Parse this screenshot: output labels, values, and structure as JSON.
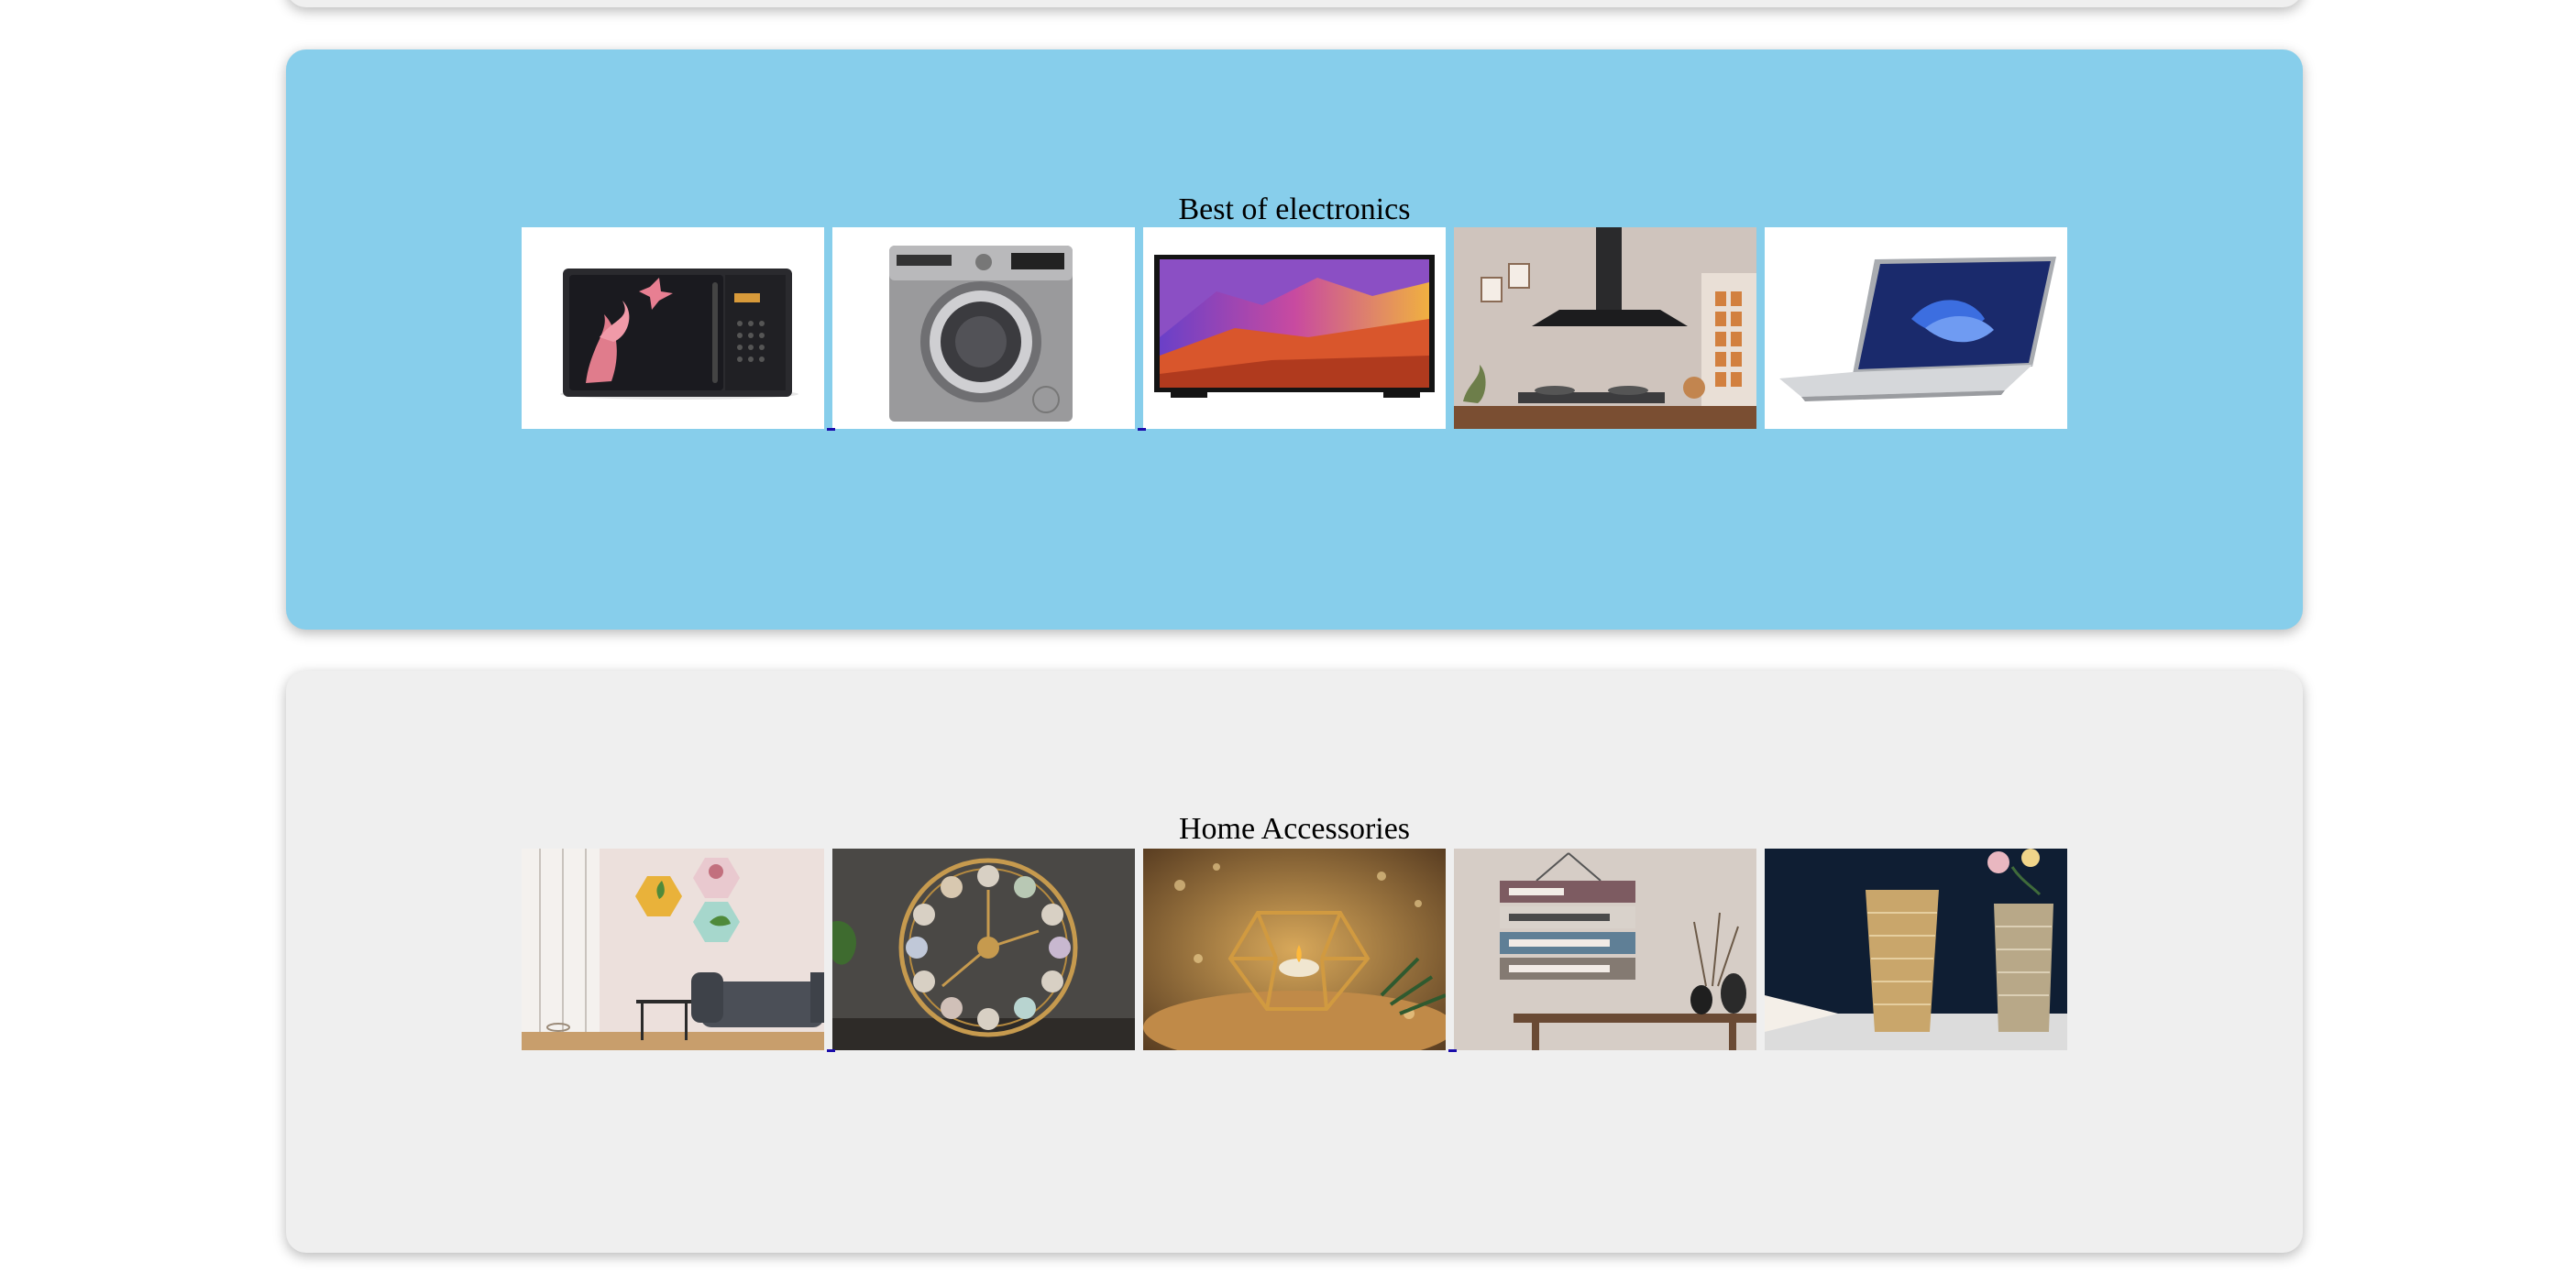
{
  "sections": [
    {
      "title": "Best of electronics",
      "items": [
        {
          "icon": "microwave-oven-image"
        },
        {
          "icon": "washing-machine-image"
        },
        {
          "icon": "television-image"
        },
        {
          "icon": "kitchen-chimney-image"
        },
        {
          "icon": "laptop-image"
        }
      ],
      "background": "#87ceeb"
    },
    {
      "title": "Home Accessories",
      "items": [
        {
          "icon": "hexagon-wall-planters-image"
        },
        {
          "icon": "wall-clock-image"
        },
        {
          "icon": "tealight-candle-holder-image"
        },
        {
          "icon": "bless-our-home-sign-image"
        },
        {
          "icon": "glass-vases-image"
        }
      ],
      "background": "#efefef"
    }
  ]
}
